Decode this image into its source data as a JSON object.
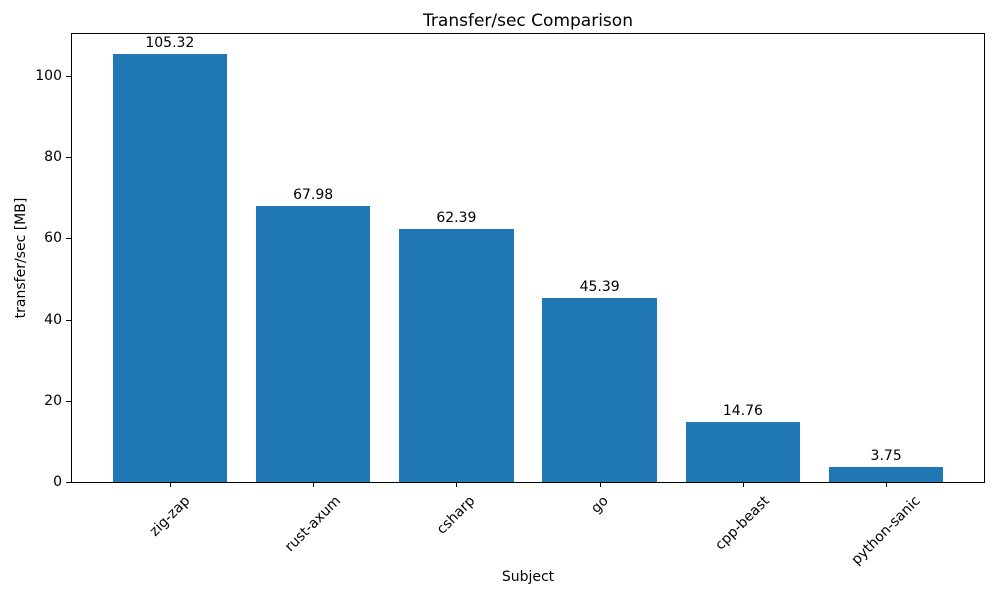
{
  "chart_data": {
    "type": "bar",
    "title": "Transfer/sec Comparison",
    "xlabel": "Subject",
    "ylabel": "transfer/sec [MB]",
    "categories": [
      "zig-zap",
      "rust-axum",
      "csharp",
      "go",
      "cpp-beast",
      "python-sanic"
    ],
    "values": [
      105.32,
      67.98,
      62.39,
      45.39,
      14.76,
      3.75
    ],
    "value_labels": [
      "105.32",
      "67.98",
      "62.39",
      "45.39",
      "14.76",
      "3.75"
    ],
    "bar_color": "#1f77b4",
    "text_color": "#000000",
    "yticks": [
      0,
      20,
      40,
      60,
      80,
      100
    ],
    "ylim": [
      0,
      110.6
    ],
    "xtick_rotation": 45,
    "grid": false,
    "legend": null
  }
}
